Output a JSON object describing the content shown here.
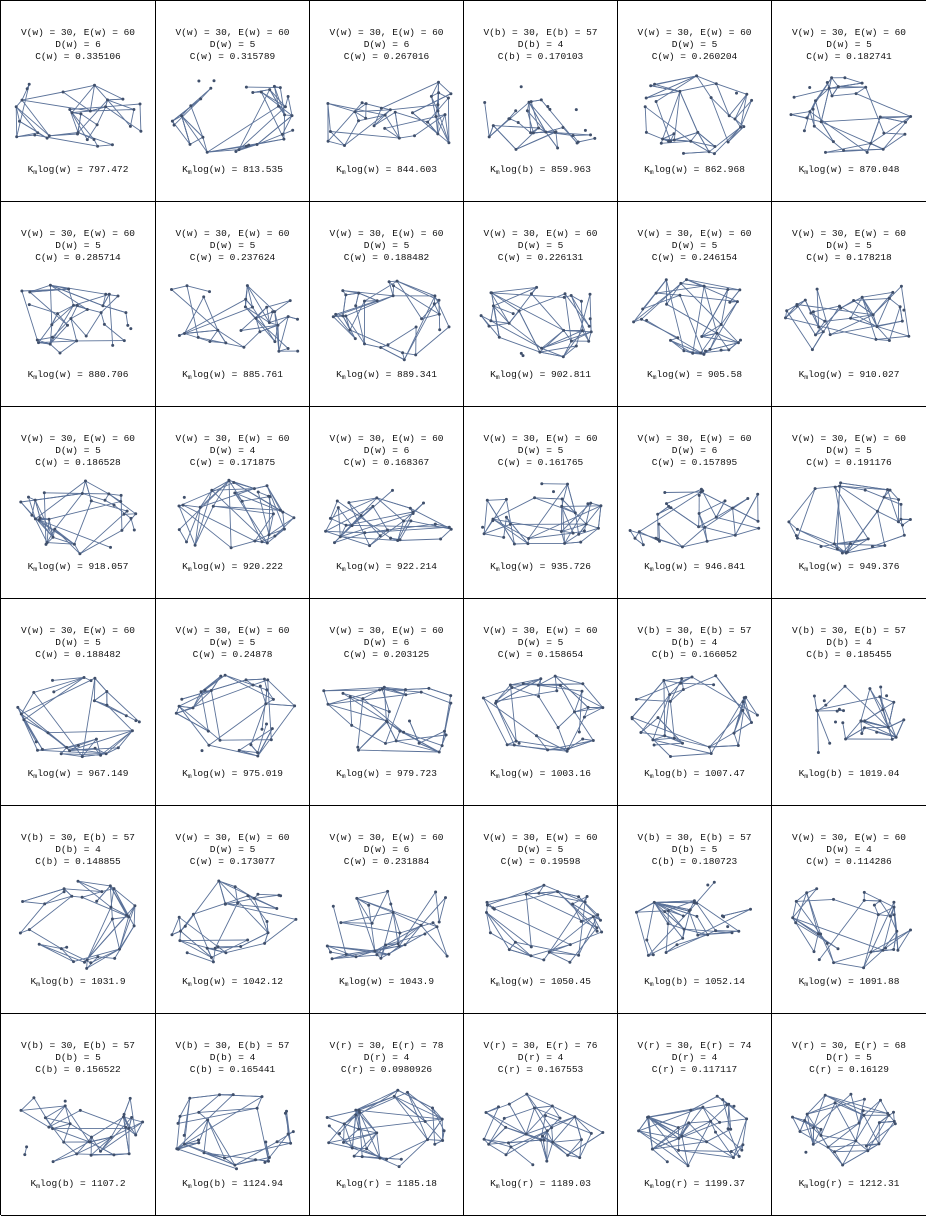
{
  "cells": [
    {
      "row": 0,
      "col": 0,
      "l1": "V(w) = 30, E(w) = 60",
      "l2": "D(w) = 6",
      "l3": "C(w) = 0.335106",
      "fpre": "K",
      "fsub": "m",
      "fpost": "log(w) = 797.472",
      "seed": 11,
      "shape": "wide"
    },
    {
      "row": 0,
      "col": 1,
      "l1": "V(w) = 30, E(w) = 60",
      "l2": "D(w) = 5",
      "l3": "C(w) = 0.315789",
      "fpre": "K",
      "fsub": "m",
      "fpost": "log(w) = 813.535",
      "seed": 12,
      "shape": "round"
    },
    {
      "row": 0,
      "col": 2,
      "l1": "V(w) = 30, E(w) = 60",
      "l2": "D(w) = 6",
      "l3": "C(w) = 0.267016",
      "fpre": "K",
      "fsub": "m",
      "fpost": "log(w) = 844.603",
      "seed": 13,
      "shape": "wide"
    },
    {
      "row": 0,
      "col": 3,
      "l1": "V(b) = 30, E(b) = 57",
      "l2": "D(b) = 4",
      "l3": "C(b) = 0.170103",
      "fpre": "K",
      "fsub": "m",
      "fpost": "log(b) = 859.963",
      "seed": 14,
      "shape": "star"
    },
    {
      "row": 0,
      "col": 4,
      "l1": "V(w) = 30, E(w) = 60",
      "l2": "D(w) = 5",
      "l3": "C(w) = 0.260204",
      "fpre": "K",
      "fsub": "m",
      "fpost": "log(w) = 862.968",
      "seed": 15,
      "shape": "round"
    },
    {
      "row": 0,
      "col": 5,
      "l1": "V(w) = 30, E(w) = 60",
      "l2": "D(w) = 5",
      "l3": "C(w) = 0.182741",
      "fpre": "K",
      "fsub": "m",
      "fpost": "log(w) = 870.048",
      "seed": 16,
      "shape": "round"
    },
    {
      "row": 1,
      "col": 0,
      "l1": "V(w) = 30, E(w) = 60",
      "l2": "D(w) = 5",
      "l3": "C(w) = 0.285714",
      "fpre": "K",
      "fsub": "m",
      "fpost": "log(w) = 880.706",
      "seed": 21,
      "shape": "wide"
    },
    {
      "row": 1,
      "col": 1,
      "l1": "V(w) = 30, E(w) = 60",
      "l2": "D(w) = 5",
      "l3": "C(w) = 0.237624",
      "fpre": "K",
      "fsub": "m",
      "fpost": "log(w) = 885.761",
      "seed": 22,
      "shape": "wide"
    },
    {
      "row": 1,
      "col": 2,
      "l1": "V(w) = 30, E(w) = 60",
      "l2": "D(w) = 5",
      "l3": "C(w) = 0.188482",
      "fpre": "K",
      "fsub": "m",
      "fpost": "log(w) = 889.341",
      "seed": 23,
      "shape": "round"
    },
    {
      "row": 1,
      "col": 3,
      "l1": "V(w) = 30, E(w) = 60",
      "l2": "D(w) = 5",
      "l3": "C(w) = 0.226131",
      "fpre": "K",
      "fsub": "m",
      "fpost": "log(w) = 902.811",
      "seed": 24,
      "shape": "round"
    },
    {
      "row": 1,
      "col": 4,
      "l1": "V(w) = 30, E(w) = 60",
      "l2": "D(w) = 5",
      "l3": "C(w) = 0.246154",
      "fpre": "K",
      "fsub": "m",
      "fpost": "log(w) = 905.58",
      "seed": 25,
      "shape": "round"
    },
    {
      "row": 1,
      "col": 5,
      "l1": "V(w) = 30, E(w) = 60",
      "l2": "D(w) = 5",
      "l3": "C(w) = 0.178218",
      "fpre": "K",
      "fsub": "m",
      "fpost": "log(w) = 910.027",
      "seed": 26,
      "shape": "wide"
    },
    {
      "row": 2,
      "col": 0,
      "l1": "V(w) = 30, E(w) = 60",
      "l2": "D(w) = 5",
      "l3": "C(w) = 0.186528",
      "fpre": "K",
      "fsub": "m",
      "fpost": "log(w) = 918.057",
      "seed": 31,
      "shape": "round"
    },
    {
      "row": 2,
      "col": 1,
      "l1": "V(w) = 30, E(w) = 60",
      "l2": "D(w) = 4",
      "l3": "C(w) = 0.171875",
      "fpre": "K",
      "fsub": "m",
      "fpost": "log(w) = 920.222",
      "seed": 32,
      "shape": "round"
    },
    {
      "row": 2,
      "col": 2,
      "l1": "V(w) = 30, E(w) = 60",
      "l2": "D(w) = 6",
      "l3": "C(w) = 0.168367",
      "fpre": "K",
      "fsub": "m",
      "fpost": "log(w) = 922.214",
      "seed": 33,
      "shape": "wide"
    },
    {
      "row": 2,
      "col": 3,
      "l1": "V(w) = 30, E(w) = 60",
      "l2": "D(w) = 5",
      "l3": "C(w) = 0.161765",
      "fpre": "K",
      "fsub": "m",
      "fpost": "log(w) = 935.726",
      "seed": 34,
      "shape": "round"
    },
    {
      "row": 2,
      "col": 4,
      "l1": "V(w) = 30, E(w) = 60",
      "l2": "D(w) = 6",
      "l3": "C(w) = 0.157895",
      "fpre": "K",
      "fsub": "m",
      "fpost": "log(w) = 946.841",
      "seed": 35,
      "shape": "wide"
    },
    {
      "row": 2,
      "col": 5,
      "l1": "V(w) = 30, E(w) = 60",
      "l2": "D(w) = 5",
      "l3": "C(w) = 0.191176",
      "fpre": "K",
      "fsub": "m",
      "fpost": "log(w) = 949.376",
      "seed": 36,
      "shape": "round"
    },
    {
      "row": 3,
      "col": 0,
      "l1": "V(w) = 30, E(w) = 60",
      "l2": "D(w) = 5",
      "l3": "C(w) = 0.188482",
      "fpre": "K",
      "fsub": "m",
      "fpost": "log(w) = 967.149",
      "seed": 41,
      "shape": "round"
    },
    {
      "row": 3,
      "col": 1,
      "l1": "V(w) = 30, E(w) = 60",
      "l2": "D(w) = 5",
      "l3": "C(w) = 0.24878",
      "fpre": "K",
      "fsub": "m",
      "fpost": "log(w) = 975.019",
      "seed": 42,
      "shape": "round"
    },
    {
      "row": 3,
      "col": 2,
      "l1": "V(w) = 30, E(w) = 60",
      "l2": "D(w) = 6",
      "l3": "C(w) = 0.203125",
      "fpre": "K",
      "fsub": "m",
      "fpost": "log(w) = 979.723",
      "seed": 43,
      "shape": "wide"
    },
    {
      "row": 3,
      "col": 3,
      "l1": "V(w) = 30, E(w) = 60",
      "l2": "D(w) = 5",
      "l3": "C(w) = 0.158654",
      "fpre": "K",
      "fsub": "m",
      "fpost": "log(w) = 1003.16",
      "seed": 44,
      "shape": "round"
    },
    {
      "row": 3,
      "col": 4,
      "l1": "V(b) = 30, E(b) = 57",
      "l2": "D(b) = 4",
      "l3": "C(b) = 0.166052",
      "fpre": "K",
      "fsub": "m",
      "fpost": "log(b) = 1007.47",
      "seed": 45,
      "shape": "round"
    },
    {
      "row": 3,
      "col": 5,
      "l1": "V(b) = 30, E(b) = 57",
      "l2": "D(b) = 4",
      "l3": "C(b) = 0.185455",
      "fpre": "K",
      "fsub": "m",
      "fpost": "log(b) = 1019.04",
      "seed": 46,
      "shape": "star"
    },
    {
      "row": 4,
      "col": 0,
      "l1": "V(b) = 30, E(b) = 57",
      "l2": "D(b) = 4",
      "l3": "C(b) = 0.148855",
      "fpre": "K",
      "fsub": "m",
      "fpost": "log(b) = 1031.9",
      "seed": 51,
      "shape": "round"
    },
    {
      "row": 4,
      "col": 1,
      "l1": "V(w) = 30, E(w) = 60",
      "l2": "D(w) = 5",
      "l3": "C(w) = 0.173077",
      "fpre": "K",
      "fsub": "m",
      "fpost": "log(w) = 1042.12",
      "seed": 52,
      "shape": "round"
    },
    {
      "row": 4,
      "col": 2,
      "l1": "V(w) = 30, E(w) = 60",
      "l2": "D(w) = 6",
      "l3": "C(w) = 0.231884",
      "fpre": "K",
      "fsub": "m",
      "fpost": "log(w) = 1043.9",
      "seed": 53,
      "shape": "wide"
    },
    {
      "row": 4,
      "col": 3,
      "l1": "V(w) = 30, E(w) = 60",
      "l2": "D(w) = 5",
      "l3": "C(w) = 0.19598",
      "fpre": "K",
      "fsub": "m",
      "fpost": "log(w) = 1050.45",
      "seed": 54,
      "shape": "round"
    },
    {
      "row": 4,
      "col": 4,
      "l1": "V(b) = 30, E(b) = 57",
      "l2": "D(b) = 5",
      "l3": "C(b) = 0.180723",
      "fpre": "K",
      "fsub": "m",
      "fpost": "log(b) = 1052.14",
      "seed": 55,
      "shape": "star"
    },
    {
      "row": 4,
      "col": 5,
      "l1": "V(w) = 30, E(w) = 60",
      "l2": "D(w) = 4",
      "l3": "C(w) = 0.114286",
      "fpre": "K",
      "fsub": "m",
      "fpost": "log(w) = 1091.88",
      "seed": 56,
      "shape": "round"
    },
    {
      "row": 5,
      "col": 0,
      "l1": "V(b) = 30, E(b) = 57",
      "l2": "D(b) = 5",
      "l3": "C(b) = 0.156522",
      "fpre": "K",
      "fsub": "m",
      "fpost": "log(b) = 1107.2",
      "seed": 61,
      "shape": "wide"
    },
    {
      "row": 5,
      "col": 1,
      "l1": "V(b) = 30, E(b) = 57",
      "l2": "D(b) = 4",
      "l3": "C(b) = 0.165441",
      "fpre": "K",
      "fsub": "m",
      "fpost": "log(b) = 1124.94",
      "seed": 62,
      "shape": "round"
    },
    {
      "row": 5,
      "col": 2,
      "l1": "V(r) = 30, E(r) = 78",
      "l2": "D(r) = 4",
      "l3": "C(r) = 0.0980926",
      "fpre": "K",
      "fsub": "m",
      "fpost": "log(r) = 1185.18",
      "seed": 63,
      "shape": "dense"
    },
    {
      "row": 5,
      "col": 3,
      "l1": "V(r) = 30, E(r) = 76",
      "l2": "D(r) = 4",
      "l3": "C(r) = 0.167553",
      "fpre": "K",
      "fsub": "m",
      "fpost": "log(r) = 1189.03",
      "seed": 64,
      "shape": "dense"
    },
    {
      "row": 5,
      "col": 4,
      "l1": "V(r) = 30, E(r) = 74",
      "l2": "D(r) = 4",
      "l3": "C(r) = 0.117117",
      "fpre": "K",
      "fsub": "m",
      "fpost": "log(r) = 1199.37",
      "seed": 65,
      "shape": "dense"
    },
    {
      "row": 5,
      "col": 5,
      "l1": "V(r) = 30, E(r) = 68",
      "l2": "D(r) = 5",
      "l3": "C(r) = 0.16129",
      "fpre": "K",
      "fsub": "m",
      "fpost": "log(r) = 1212.31",
      "seed": 66,
      "shape": "dense"
    }
  ]
}
